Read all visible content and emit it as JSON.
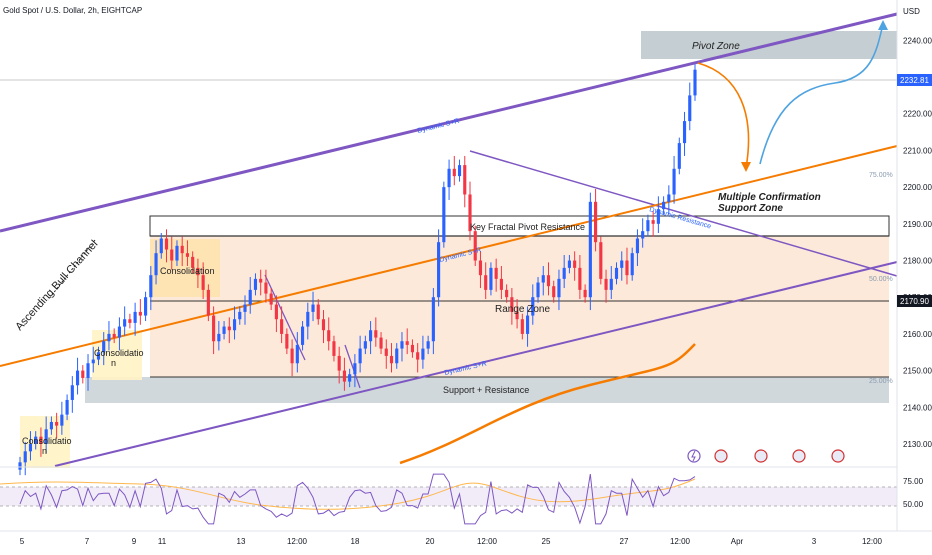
{
  "header": {
    "symbol_title": "Gold Spot / U.S. Dollar, 2h, EIGHTCAP",
    "currency": "USD"
  },
  "price_axis": {
    "ticks": [
      "2240.00",
      "2230.00",
      "2220.00",
      "2210.00",
      "2200.00",
      "2190.00",
      "2180.00",
      "2170.00",
      "2160.00",
      "2150.00",
      "2140.00",
      "2130.00"
    ],
    "last_price": "2232.81",
    "last_price_color": "#2962ff",
    "range_mid_price": "2170.90"
  },
  "time_axis": {
    "ticks": [
      "5",
      "7",
      "9",
      "11",
      "13",
      "12:00",
      "18",
      "20",
      "12:00",
      "25",
      "27",
      "12:00",
      "Apr",
      "3",
      "12:00"
    ]
  },
  "annotations": {
    "pivot_zone": "Pivot Zone",
    "channel_title": "Ascending Bull Channel",
    "dynamic_sr_upper": "Dynamic S+R",
    "dynamic_sr_lower": "Dynamic S+R",
    "dynamic_resistance": "Dynamic Resistance",
    "key_fractal": "Key Fractal Pivot Resistance",
    "multiple_confirmation_1": "Multiple Confirmation",
    "multiple_confirmation_2": "Support Zone",
    "range_zone": "Range Zone",
    "support_resistance": "Support + Resistance",
    "consolidation_1a": "Consolidatio",
    "consolidation_1b": "n",
    "consolidation_2a": "Consolidatio",
    "consolidation_2b": "n",
    "consolidation_3": "Consolidation",
    "fib_75": "75.00%",
    "fib_50": "50.00%",
    "fib_25": "25.00%"
  },
  "rsi": {
    "ticks": [
      "75.00",
      "50.00"
    ]
  },
  "colors": {
    "up_candle": "#2962ff",
    "down_candle": "#f23645",
    "channel": "#7e57c2",
    "trend": "#f57c00",
    "zone_grey": "#b2bec3",
    "range_fill": "#fbe3cf",
    "consolidation_fill": "#fff3c4",
    "rsi_line": "#7e57c2"
  },
  "chart_data": {
    "type": "candlestick",
    "title": "Gold Spot / U.S. Dollar, 2h, EIGHTCAP",
    "ylim": [
      2124,
      2251
    ],
    "closes": [
      2125,
      2128,
      2130,
      2132,
      2130,
      2134,
      2136,
      2135,
      2138,
      2142,
      2146,
      2150,
      2148,
      2152,
      2153,
      2155,
      2158,
      2160,
      2159,
      2162,
      2164,
      2163,
      2166,
      2165,
      2170,
      2176,
      2182,
      2186,
      2183,
      2180,
      2184,
      2182,
      2181,
      2178,
      2176,
      2172,
      2165,
      2158,
      2160,
      2162,
      2161,
      2164,
      2166,
      2168,
      2172,
      2175,
      2174,
      2171,
      2168,
      2164,
      2160,
      2156,
      2152,
      2157,
      2162,
      2166,
      2168,
      2164,
      2161,
      2158,
      2154,
      2150,
      2147,
      2149,
      2152,
      2156,
      2158,
      2161,
      2159,
      2156,
      2154,
      2152,
      2156,
      2158,
      2157,
      2155,
      2153,
      2156,
      2158,
      2170,
      2185,
      2200,
      2205,
      2203,
      2206,
      2198,
      2188,
      2180,
      2176,
      2172,
      2178,
      2175,
      2172,
      2170,
      2166,
      2164,
      2160,
      2165,
      2170,
      2174,
      2176,
      2173,
      2170,
      2175,
      2178,
      2180,
      2178,
      2172,
      2170,
      2196,
      2185,
      2175,
      2172,
      2175,
      2178,
      2180,
      2176,
      2182,
      2186,
      2188,
      2191,
      2190,
      2194,
      2196,
      2198,
      2205,
      2212,
      2218,
      2225,
      2232
    ],
    "key_levels": {
      "pivot_zone": [
        2239,
        2246
      ],
      "range_top": 2189,
      "range_mid": 2170.9,
      "range_bottom": 2150,
      "support_zone": [
        2143,
        2150
      ],
      "key_fractal": [
        2189,
        2195
      ]
    },
    "rsi": {
      "levels": [
        70,
        50
      ],
      "last": 72
    }
  }
}
